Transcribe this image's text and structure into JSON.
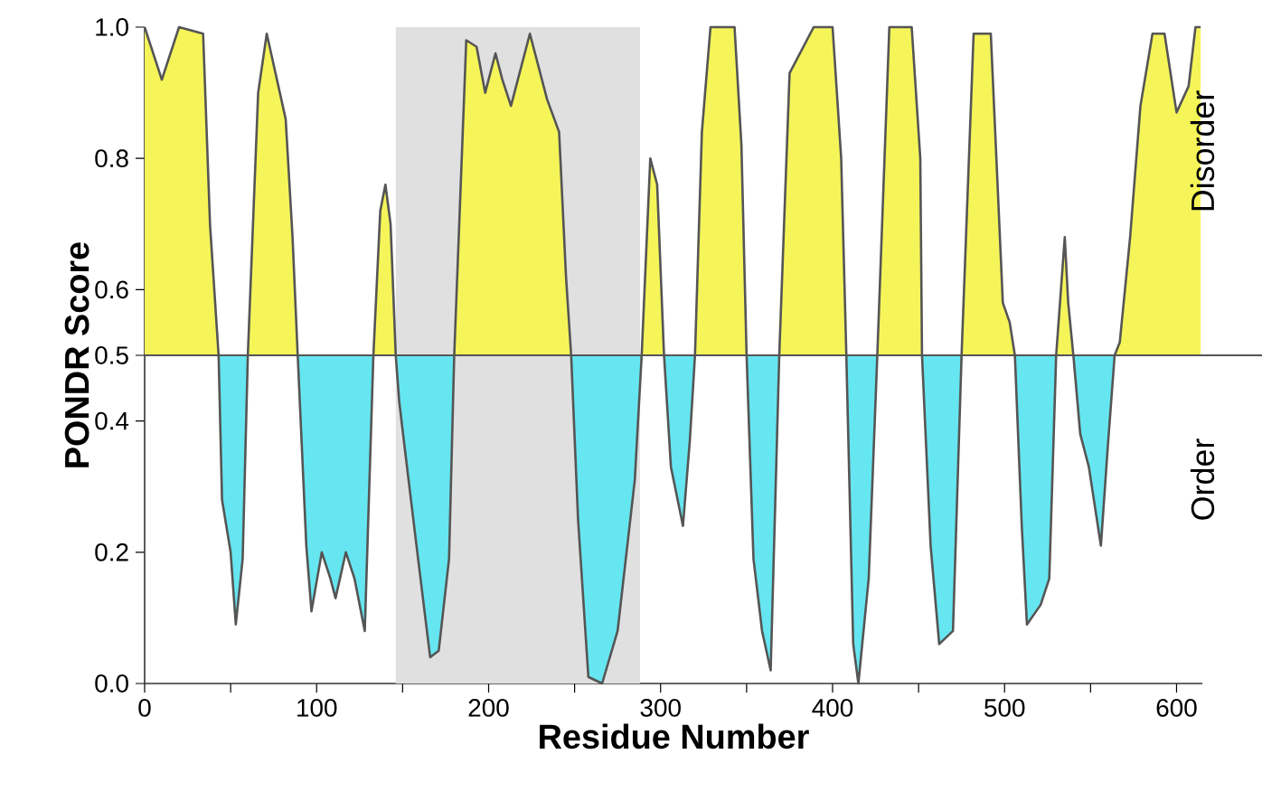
{
  "chart_data": {
    "type": "area",
    "xlabel": "Residue Number",
    "ylabel": "PONDR Score",
    "x": [
      0,
      10,
      20,
      34,
      38,
      43,
      45,
      50,
      53,
      57,
      60,
      66,
      71,
      82,
      86,
      89,
      94,
      97,
      103,
      108,
      111,
      117,
      122,
      128,
      133,
      137,
      140,
      143,
      146,
      148,
      153,
      159,
      166,
      171,
      177,
      180,
      187,
      193,
      198,
      204,
      208,
      213,
      224,
      234,
      241,
      245,
      248,
      252,
      258,
      266,
      275,
      285,
      289,
      294,
      298,
      302,
      306,
      313,
      317,
      320,
      324,
      329,
      343,
      347,
      350,
      354,
      359,
      364,
      369,
      375,
      389,
      400,
      405,
      408,
      412,
      415,
      421,
      426,
      433,
      446,
      451,
      452,
      457,
      462,
      470,
      475,
      482,
      492,
      499,
      503,
      506,
      510,
      513,
      521,
      526,
      530,
      535,
      537,
      540,
      544,
      549,
      556,
      560,
      564,
      567,
      573,
      579,
      586,
      593,
      600,
      607,
      611,
      614
    ],
    "series": [
      {
        "color": "#555555",
        "values": [
          1.0,
          0.92,
          1.0,
          0.99,
          0.7,
          0.5,
          0.28,
          0.2,
          0.09,
          0.19,
          0.5,
          0.9,
          0.99,
          0.86,
          0.68,
          0.5,
          0.21,
          0.11,
          0.2,
          0.16,
          0.13,
          0.2,
          0.16,
          0.08,
          0.5,
          0.72,
          0.76,
          0.7,
          0.5,
          0.43,
          0.32,
          0.19,
          0.04,
          0.05,
          0.19,
          0.5,
          0.98,
          0.97,
          0.9,
          0.96,
          0.92,
          0.88,
          0.99,
          0.89,
          0.84,
          0.62,
          0.5,
          0.25,
          0.01,
          0.0,
          0.08,
          0.31,
          0.5,
          0.8,
          0.76,
          0.5,
          0.33,
          0.24,
          0.37,
          0.5,
          0.84,
          1.0,
          1.0,
          0.82,
          0.5,
          0.19,
          0.08,
          0.02,
          0.5,
          0.93,
          1.0,
          1.0,
          0.8,
          0.5,
          0.06,
          0.0,
          0.16,
          0.5,
          1.0,
          1.0,
          0.8,
          0.5,
          0.21,
          0.06,
          0.08,
          0.5,
          0.99,
          0.99,
          0.58,
          0.55,
          0.5,
          0.24,
          0.09,
          0.12,
          0.16,
          0.5,
          0.68,
          0.58,
          0.5,
          0.38,
          0.33,
          0.21,
          0.36,
          0.5,
          0.52,
          0.68,
          0.88,
          0.99,
          0.99,
          0.87,
          0.91,
          1.0,
          1.0
        ]
      }
    ],
    "xlim": [
      0,
      615
    ],
    "ylim": [
      0,
      1
    ],
    "xticks": [
      0,
      {
        "value": 50,
        "label": null
      },
      100,
      {
        "value": 150,
        "label": null
      },
      200,
      {
        "value": 250,
        "label": null
      },
      300,
      {
        "value": 350,
        "label": null
      },
      400,
      {
        "value": 450,
        "label": null
      },
      500,
      {
        "value": 550,
        "label": null
      },
      600
    ],
    "yticks": [
      {
        "value": 0,
        "label": "0.0"
      },
      {
        "value": 0.2,
        "label": "0.2"
      },
      {
        "value": 0.4,
        "label": "0.4"
      },
      {
        "value": 0.5,
        "label": "0.5"
      },
      {
        "value": 0.6,
        "label": "0.6"
      },
      {
        "value": 0.8,
        "label": "0.8"
      },
      {
        "value": 1,
        "label": "1.0"
      }
    ],
    "ref_lines": [
      {
        "axis": "y",
        "value": 0.5,
        "color": "#555555"
      }
    ],
    "bands": [
      {
        "axis": "x",
        "from": 146,
        "to": 288,
        "color": "#e0e0e0"
      }
    ],
    "annotations": [
      "Disorder",
      "Order"
    ]
  }
}
